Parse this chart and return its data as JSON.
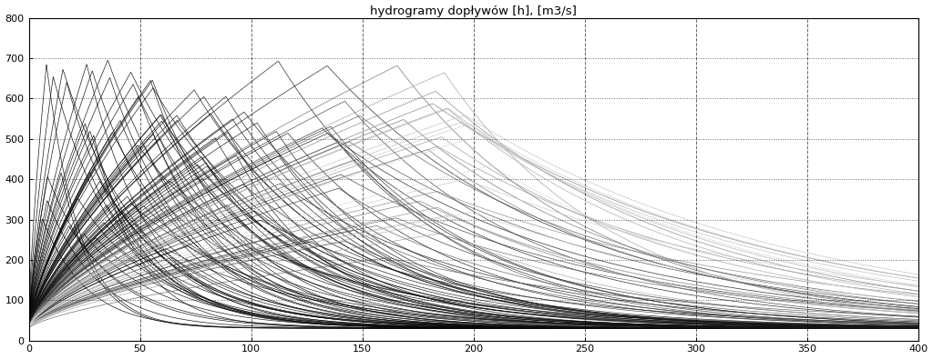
{
  "title": "hydrogramy dopływów [h], [m3/s]",
  "xlim": [
    0,
    400
  ],
  "ylim": [
    0,
    800
  ],
  "xticks": [
    0,
    50,
    100,
    150,
    200,
    250,
    300,
    350,
    400
  ],
  "yticks": [
    0,
    100,
    200,
    300,
    400,
    500,
    600,
    700,
    800
  ],
  "background_color": "#ffffff",
  "fig_width": 10.24,
  "fig_height": 3.95,
  "dpi": 100,
  "num_hydrographs": 120,
  "seed": 7,
  "base_flow": 30
}
